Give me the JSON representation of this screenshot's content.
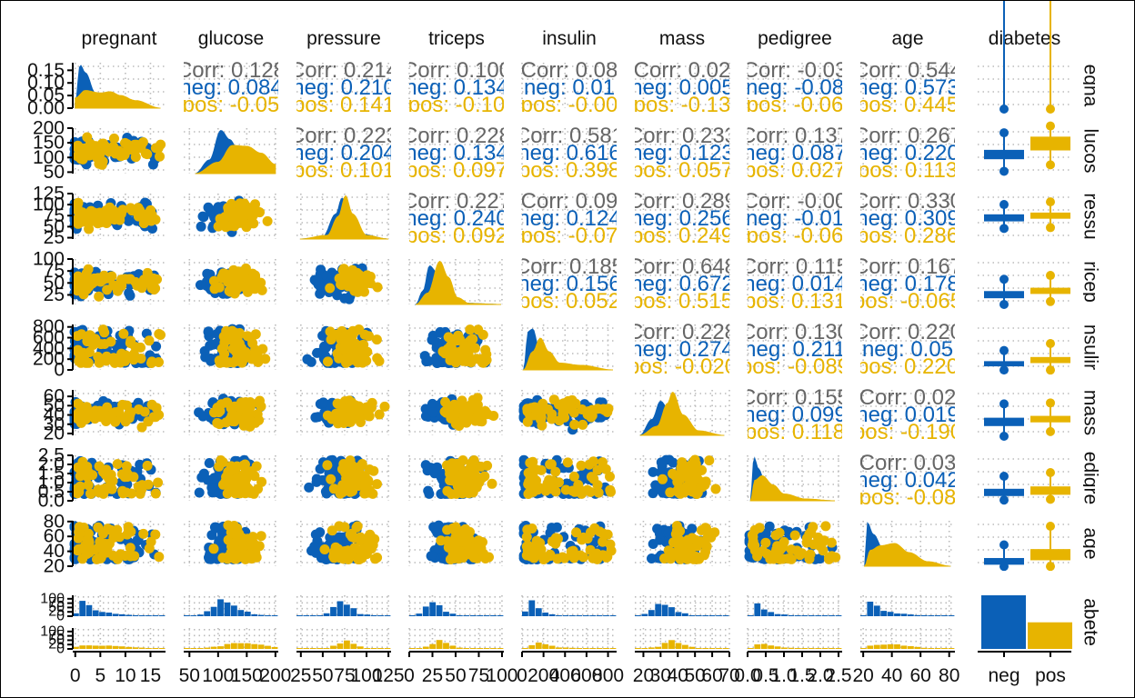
{
  "chart_data": {
    "type": "scatter_matrix",
    "title": "",
    "variables": [
      "pregnant",
      "glucose",
      "pressure",
      "triceps",
      "insulin",
      "mass",
      "pedigree",
      "age",
      "diabetes"
    ],
    "row_strip_labels": [
      "egna",
      "lucos",
      "ressu",
      "ricep",
      "nsulir",
      "mass",
      "edigre",
      "age",
      "abete"
    ],
    "group_variable": "diabetes",
    "groups": [
      {
        "name": "neg",
        "color": "#0B60B7"
      },
      {
        "name": "pos",
        "color": "#E7B400"
      }
    ],
    "colors": {
      "neg": "#0B60B7",
      "pos": "#E7B400",
      "overall": "#666666",
      "grid": "#BBBBBB",
      "axis": "#000000"
    },
    "grid": true,
    "axes": {
      "pregnant": {
        "range": [
          -0.5,
          18
        ],
        "ticks": [
          "0",
          "5",
          "10",
          "15"
        ]
      },
      "glucose": {
        "range": [
          40,
          205
        ],
        "ticks": [
          "50",
          "100",
          "150",
          "200"
        ]
      },
      "pressure": {
        "range": [
          20,
          128
        ],
        "ticks": [
          "25",
          "50",
          "75",
          "100",
          "125"
        ]
      },
      "triceps": {
        "range": [
          0,
          102
        ],
        "ticks": [
          "0",
          "25",
          "50",
          "75",
          "100"
        ]
      },
      "insulin": {
        "range": [
          0,
          880
        ],
        "ticks": [
          "0",
          "200",
          "400",
          "600",
          "800"
        ]
      },
      "mass": {
        "range": [
          15,
          70
        ],
        "ticks": [
          "20",
          "30",
          "40",
          "50",
          "60",
          "70"
        ]
      },
      "pedigree": {
        "range": [
          0,
          2.6
        ],
        "ticks": [
          "0.0",
          "0.5",
          "1.0",
          "1.5",
          "2.0",
          "2.5"
        ]
      },
      "age": {
        "range": [
          18,
          84
        ],
        "ticks": [
          "20",
          "40",
          "60",
          "80"
        ]
      },
      "diabetes": {
        "range": [
          "neg",
          "pos"
        ],
        "ticks": [
          "neg",
          "pos"
        ]
      }
    },
    "left_axis": {
      "pregnant": {
        "range": [
          0,
          0.18
        ],
        "ticks": [
          "0.00",
          "0.05",
          "0.10",
          "0.15"
        ]
      },
      "glucose": {
        "range": [
          45,
          200
        ],
        "ticks": [
          "50",
          "100",
          "150",
          "200"
        ]
      },
      "pressure": {
        "range": [
          22,
          125
        ],
        "ticks": [
          "25",
          "50",
          "75",
          "100",
          "125"
        ]
      },
      "triceps": {
        "range": [
          5,
          100
        ],
        "ticks": [
          "25",
          "50",
          "75",
          "100"
        ]
      },
      "insulin": {
        "range": [
          0,
          846
        ],
        "ticks": [
          "0",
          "200",
          "400",
          "600",
          "800"
        ]
      },
      "mass": {
        "range": [
          18,
          67
        ],
        "ticks": [
          "20",
          "30",
          "40",
          "50",
          "60"
        ]
      },
      "pedigree": {
        "range": [
          0,
          2.5
        ],
        "ticks": [
          "0.0",
          "0.5",
          "1.0",
          "1.5",
          "2.0",
          "2.5"
        ]
      },
      "age": {
        "range": [
          20,
          81
        ],
        "ticks": [
          "20",
          "40",
          "60",
          "80"
        ]
      },
      "diabetes_top": {
        "range": [
          0,
          120
        ],
        "ticks": [
          "0",
          "25",
          "50",
          "75",
          "100"
        ]
      },
      "diabetes_bottom": {
        "range": [
          0,
          120
        ],
        "ticks": [
          "0",
          "25",
          "50",
          "75",
          "100"
        ]
      }
    },
    "correlations": [
      {
        "row": 0,
        "col": 1,
        "corr": "Corr: 0.128",
        "neg": "neg: 0.084",
        "pos": "pos: -0.05"
      },
      {
        "row": 0,
        "col": 2,
        "corr": "Corr: 0.214",
        "neg": "neg: 0.210",
        "pos": "pos: 0.141"
      },
      {
        "row": 0,
        "col": 3,
        "corr": "Corr: 0.100",
        "neg": "neg: 0.134",
        "pos": "pos: -0.10"
      },
      {
        "row": 0,
        "col": 4,
        "corr": "Corr: 0.08",
        "neg": "neg: 0.01",
        "pos": "pos: -0.00"
      },
      {
        "row": 0,
        "col": 5,
        "corr": "Corr: 0.02",
        "neg": "neg: 0.005",
        "pos": "pos: -0.13"
      },
      {
        "row": 0,
        "col": 6,
        "corr": "Corr: -0.03",
        "neg": "neg: -0.08",
        "pos": "pos: -0.06"
      },
      {
        "row": 0,
        "col": 7,
        "corr": "Corr: 0.544",
        "neg": "neg: 0.573",
        "pos": "pos: 0.445"
      },
      {
        "row": 1,
        "col": 2,
        "corr": "Corr: 0.223",
        "neg": "neg: 0.204",
        "pos": "pos: 0.101"
      },
      {
        "row": 1,
        "col": 3,
        "corr": "Corr: 0.228",
        "neg": "neg: 0.134",
        "pos": "pos: 0.097"
      },
      {
        "row": 1,
        "col": 4,
        "corr": "Corr: 0.581",
        "neg": "neg: 0.616",
        "pos": "pos: 0.398"
      },
      {
        "row": 1,
        "col": 5,
        "corr": "Corr: 0.233",
        "neg": "neg: 0.123",
        "pos": "pos: 0.057"
      },
      {
        "row": 1,
        "col": 6,
        "corr": "Corr: 0.137",
        "neg": "neg: 0.087",
        "pos": "pos: 0.027"
      },
      {
        "row": 1,
        "col": 7,
        "corr": "Corr: 0.267",
        "neg": "neg: 0.220",
        "pos": "pos: 0.113"
      },
      {
        "row": 2,
        "col": 3,
        "corr": "Corr: 0.227",
        "neg": "neg: 0.240",
        "pos": "pos: 0.092"
      },
      {
        "row": 2,
        "col": 4,
        "corr": "Corr: 0.09",
        "neg": "neg: 0.124",
        "pos": "pos: -0.07"
      },
      {
        "row": 2,
        "col": 5,
        "corr": "Corr: 0.289",
        "neg": "neg: 0.256",
        "pos": "pos: 0.249"
      },
      {
        "row": 2,
        "col": 6,
        "corr": "Corr: -0.00",
        "neg": "neg: -0.01",
        "pos": "pos: -0.06"
      },
      {
        "row": 2,
        "col": 7,
        "corr": "Corr: 0.330",
        "neg": "neg: 0.309",
        "pos": "pos: 0.286"
      },
      {
        "row": 3,
        "col": 4,
        "corr": "Corr: 0.185",
        "neg": "neg: 0.156",
        "pos": "pos: 0.052"
      },
      {
        "row": 3,
        "col": 5,
        "corr": "Corr: 0.648",
        "neg": "neg: 0.672",
        "pos": "pos: 0.515"
      },
      {
        "row": 3,
        "col": 6,
        "corr": "Corr: 0.115",
        "neg": "neg: 0.014",
        "pos": "pos: 0.131"
      },
      {
        "row": 3,
        "col": 7,
        "corr": "Corr: 0.167",
        "neg": "neg: 0.178",
        "pos": "pos: -0.065"
      },
      {
        "row": 4,
        "col": 5,
        "corr": "Corr: 0.228",
        "neg": "neg: 0.274",
        "pos": "pos: -0.020"
      },
      {
        "row": 4,
        "col": 6,
        "corr": "Corr: 0.130",
        "neg": "neg: 0.211",
        "pos": "pos: -0.089"
      },
      {
        "row": 4,
        "col": 7,
        "corr": "Corr: 0.220",
        "neg": "neg: 0.05",
        "pos": "pos: 0.220"
      },
      {
        "row": 5,
        "col": 6,
        "corr": "Corr: 0.155",
        "neg": "neg: 0.099",
        "pos": "pos: 0.118"
      },
      {
        "row": 5,
        "col": 7,
        "corr": "Corr: 0.02",
        "neg": "neg: 0.019",
        "pos": "pos: -0.190"
      },
      {
        "row": 6,
        "col": 7,
        "corr": "Corr: 0.03",
        "neg": "neg: 0.042",
        "pos": "pos: -0.08"
      }
    ],
    "density_peaks": {
      "pregnant": {
        "neg": [
          [
            0,
            0.02
          ],
          [
            1,
            0.17
          ],
          [
            2,
            0.14
          ],
          [
            4,
            0.06
          ],
          [
            6,
            0.04
          ],
          [
            9,
            0.02
          ],
          [
            12,
            0.01
          ],
          [
            17,
            0
          ]
        ],
        "pos": [
          [
            0,
            0.04
          ],
          [
            2,
            0.07
          ],
          [
            5,
            0.06
          ],
          [
            7,
            0.065
          ],
          [
            9,
            0.05
          ],
          [
            12,
            0.03
          ],
          [
            17,
            0
          ]
        ]
      },
      "glucose": {
        "neg": [
          [
            60,
            0
          ],
          [
            85,
            0.3
          ],
          [
            105,
            0.95
          ],
          [
            120,
            0.75
          ],
          [
            140,
            0.35
          ],
          [
            170,
            0.08
          ],
          [
            200,
            0
          ]
        ],
        "pos": [
          [
            60,
            0
          ],
          [
            100,
            0.25
          ],
          [
            125,
            0.62
          ],
          [
            150,
            0.6
          ],
          [
            175,
            0.45
          ],
          [
            200,
            0.2
          ]
        ]
      },
      "pressure": {
        "neg": [
          [
            24,
            0
          ],
          [
            50,
            0.05
          ],
          [
            65,
            0.55
          ],
          [
            72,
            0.9
          ],
          [
            80,
            0.6
          ],
          [
            95,
            0.1
          ],
          [
            125,
            0
          ]
        ],
        "pos": [
          [
            24,
            0
          ],
          [
            55,
            0.08
          ],
          [
            68,
            0.5
          ],
          [
            76,
            0.95
          ],
          [
            84,
            0.55
          ],
          [
            100,
            0.08
          ],
          [
            125,
            0
          ]
        ]
      },
      "triceps": {
        "neg": [
          [
            7,
            0
          ],
          [
            15,
            0.3
          ],
          [
            22,
            0.85
          ],
          [
            30,
            0.7
          ],
          [
            40,
            0.25
          ],
          [
            55,
            0.03
          ],
          [
            99,
            0
          ]
        ],
        "pos": [
          [
            7,
            0
          ],
          [
            20,
            0.25
          ],
          [
            33,
            0.95
          ],
          [
            42,
            0.6
          ],
          [
            52,
            0.15
          ],
          [
            65,
            0.02
          ],
          [
            99,
            0
          ]
        ]
      },
      "insulin": {
        "neg": [
          [
            14,
            0
          ],
          [
            60,
            0.85
          ],
          [
            100,
            0.9
          ],
          [
            160,
            0.45
          ],
          [
            250,
            0.12
          ],
          [
            400,
            0.02
          ],
          [
            846,
            0
          ]
        ],
        "pos": [
          [
            14,
            0
          ],
          [
            100,
            0.4
          ],
          [
            170,
            0.7
          ],
          [
            250,
            0.4
          ],
          [
            350,
            0.15
          ],
          [
            550,
            0.1
          ],
          [
            846,
            0
          ]
        ]
      },
      "mass": {
        "neg": [
          [
            18,
            0
          ],
          [
            25,
            0.35
          ],
          [
            30,
            0.75
          ],
          [
            35,
            0.55
          ],
          [
            42,
            0.2
          ],
          [
            50,
            0.03
          ],
          [
            67,
            0
          ]
        ],
        "pos": [
          [
            18,
            0
          ],
          [
            28,
            0.2
          ],
          [
            34,
            0.7
          ],
          [
            37,
            0.95
          ],
          [
            43,
            0.45
          ],
          [
            52,
            0.1
          ],
          [
            67,
            0
          ]
        ]
      },
      "pedigree": {
        "neg": [
          [
            0.08,
            0
          ],
          [
            0.18,
            0.95
          ],
          [
            0.3,
            0.7
          ],
          [
            0.5,
            0.35
          ],
          [
            0.8,
            0.12
          ],
          [
            1.5,
            0.02
          ],
          [
            2.4,
            0
          ]
        ],
        "pos": [
          [
            0.08,
            0
          ],
          [
            0.2,
            0.45
          ],
          [
            0.4,
            0.55
          ],
          [
            0.7,
            0.35
          ],
          [
            1.0,
            0.15
          ],
          [
            1.6,
            0.04
          ],
          [
            2.4,
            0
          ]
        ]
      },
      "age": {
        "neg": [
          [
            21,
            0
          ],
          [
            23,
            0.95
          ],
          [
            27,
            0.7
          ],
          [
            35,
            0.3
          ],
          [
            45,
            0.15
          ],
          [
            60,
            0.06
          ],
          [
            81,
            0
          ]
        ],
        "pos": [
          [
            21,
            0
          ],
          [
            25,
            0.35
          ],
          [
            32,
            0.45
          ],
          [
            42,
            0.5
          ],
          [
            52,
            0.3
          ],
          [
            65,
            0.1
          ],
          [
            81,
            0
          ]
        ]
      }
    },
    "counts": {
      "neg": 262,
      "pos": 130
    },
    "boxplots": [
      {
        "variable": "pregnant",
        "neg": [
          0,
          1,
          2,
          4,
          9
        ],
        "pos": [
          0,
          2,
          4,
          8,
          17
        ]
      },
      {
        "variable": "glucose",
        "neg": [
          56,
          94,
          107,
          126,
          175
        ],
        "pos": [
          78,
          124,
          144,
          171,
          198
        ]
      },
      {
        "variable": "pressure",
        "neg": [
          48,
          62,
          70,
          78,
          94
        ],
        "pos": [
          50,
          68,
          74,
          82,
          100
        ]
      },
      {
        "variable": "triceps",
        "neg": [
          7,
          18,
          26,
          33,
          52
        ],
        "pos": [
          13,
          27,
          33,
          40,
          60
        ]
      },
      {
        "variable": "insulin",
        "neg": [
          15,
          66,
          105,
          163,
          310
        ],
        "pos": [
          14,
          127,
          170,
          240,
          440
        ]
      },
      {
        "variable": "mass",
        "neg": [
          18,
          28,
          32,
          37,
          49
        ],
        "pos": [
          23,
          32,
          35,
          39,
          50
        ]
      },
      {
        "variable": "pedigree",
        "neg": [
          0.09,
          0.26,
          0.41,
          0.66,
          1.2
        ],
        "pos": [
          0.13,
          0.33,
          0.55,
          0.79,
          1.4
        ]
      },
      {
        "variable": "age",
        "neg": [
          21,
          22,
          25,
          31,
          45
        ],
        "pos": [
          21,
          28,
          33,
          43,
          70
        ]
      }
    ]
  }
}
